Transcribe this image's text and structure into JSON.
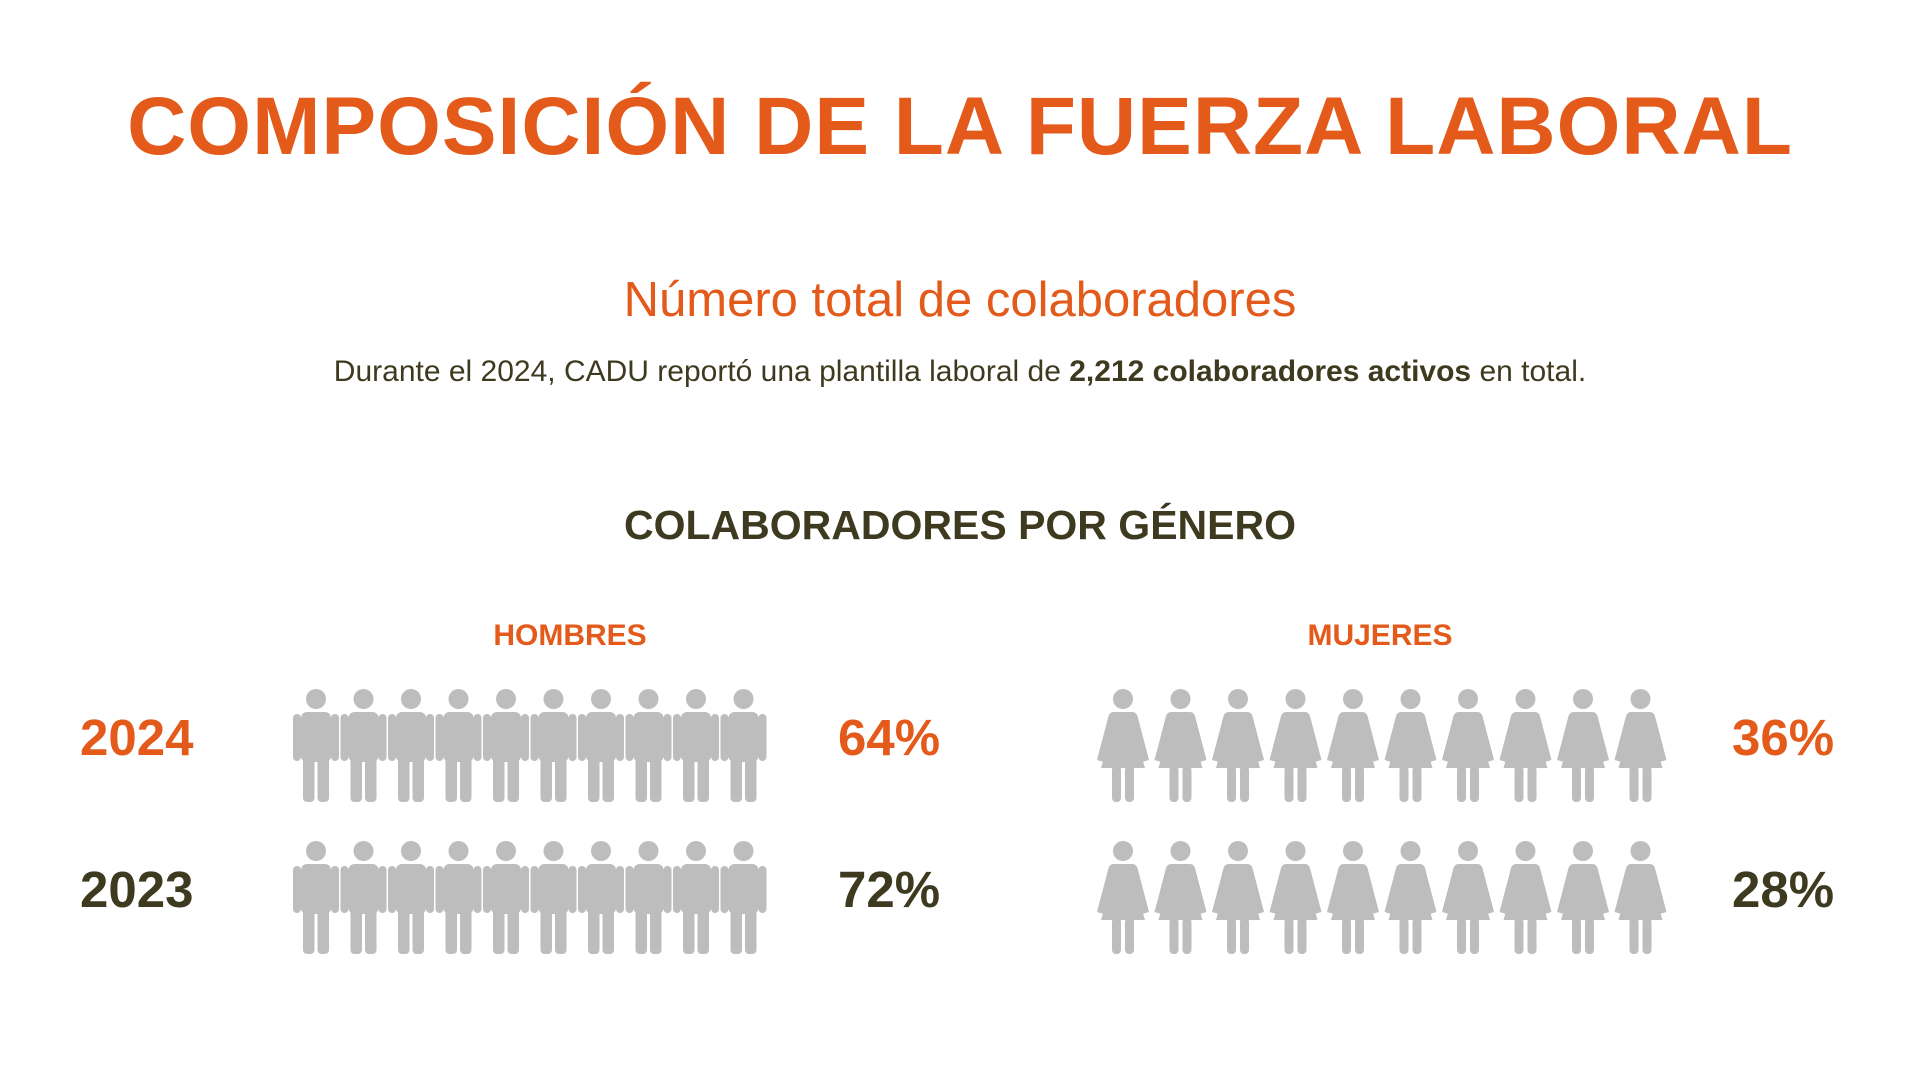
{
  "title": "COMPOSICIÓN DE LA FUERZA LABORAL",
  "subtitle": "Número total de colaboradores",
  "description": {
    "before": "Durante el 2024, CADU reportó una plantilla laboral de ",
    "bold": "2,212 colaboradores activos",
    "after": " en total."
  },
  "section_title": "COLABORADORES POR GÉNERO",
  "colors": {
    "accent": "#e35a1b",
    "dark": "#453f1e",
    "empty": "#bdbdbd",
    "text": "#3e3a1f"
  },
  "chart_data": {
    "type": "pictograph",
    "title": "COLABORADORES POR GÉNERO",
    "groups": [
      {
        "name": "HOMBRES",
        "icon": "man-figure-icon",
        "icon_count": 10,
        "series": [
          {
            "name": "2024",
            "value": 64,
            "label": "64%"
          },
          {
            "name": "2023",
            "value": 72,
            "label": "72%"
          }
        ]
      },
      {
        "name": "MUJERES",
        "icon": "woman-figure-icon",
        "icon_count": 10,
        "series": [
          {
            "name": "2024",
            "value": 36,
            "label": "36%"
          },
          {
            "name": "2023",
            "value": 28,
            "label": "28%"
          }
        ]
      }
    ]
  }
}
